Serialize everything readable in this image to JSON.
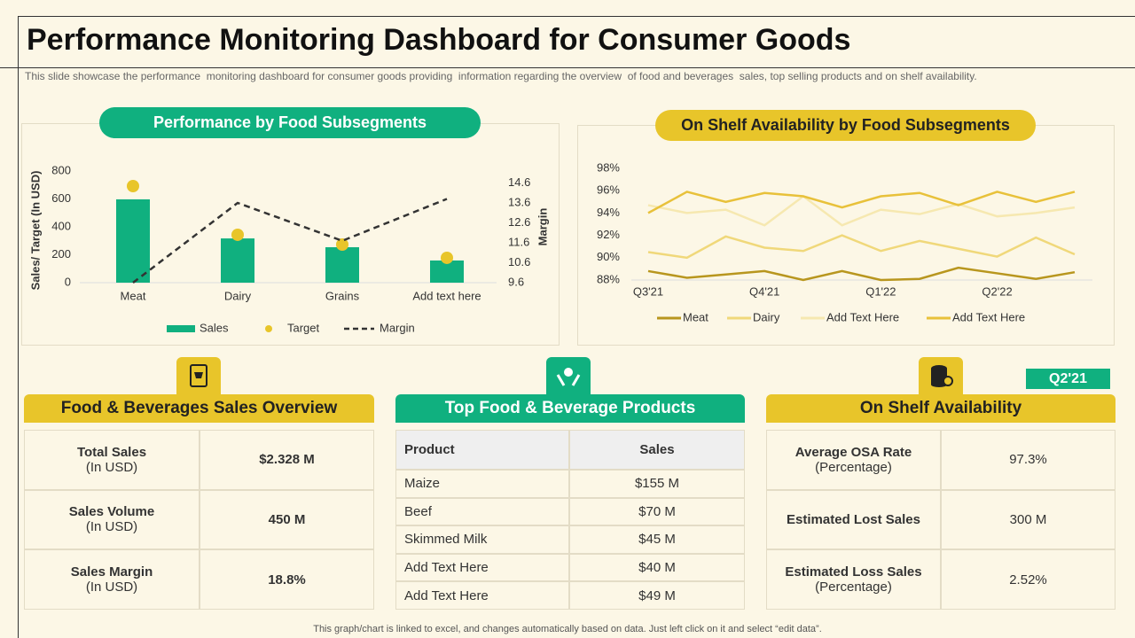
{
  "title": "Performance Monitoring Dashboard for Consumer Goods",
  "subtitle": "This slide showcase the performance  monitoring dashboard for consumer goods providing  information regarding the overview  of food and beverages  sales, top selling products and on shelf availability.",
  "footer": "This graph/chart is linked to excel, and changes automatically based on data. Just left click on it and select “edit data”.",
  "chart_data": [
    {
      "type": "bar",
      "title": "Performance by Food Subsegments",
      "y_label": "Sales/ Target (In USD)",
      "y2_label": "Margin",
      "categories": [
        "Meat",
        "Dairy",
        "Grains",
        "Add text here"
      ],
      "ylim": [
        0,
        800
      ],
      "yticks": [
        0,
        200,
        400,
        600,
        800
      ],
      "y2lim": [
        9.6,
        15.2
      ],
      "y2ticks": [
        9.6,
        10.6,
        11.6,
        12.6,
        13.6,
        14.6
      ],
      "series": [
        {
          "name": "Sales",
          "type": "bar",
          "color": "#10b07f",
          "values": [
            597,
            317,
            254,
            159
          ]
        },
        {
          "name": "Target",
          "type": "scatter",
          "color": "#e8c52a",
          "values": [
            692,
            343,
            273,
            178
          ]
        },
        {
          "name": "Margin",
          "type": "line",
          "color": "#333333",
          "axis": "y2",
          "values": [
            9.6,
            13.6,
            11.7,
            13.8
          ]
        }
      ]
    },
    {
      "type": "line",
      "title": "On Shelf Availability by Food Subsegments",
      "categories": [
        "Q3'21",
        null,
        null,
        "Q4'21",
        null,
        null,
        "Q1'22",
        null,
        null,
        "Q2'22",
        null,
        null
      ],
      "ylim": [
        88,
        98
      ],
      "yticks": [
        {
          "value": 88,
          "label": "88%"
        },
        {
          "value": 90,
          "label": "90%"
        },
        {
          "value": 92,
          "label": "92%"
        },
        {
          "value": 94,
          "label": "94%"
        },
        {
          "value": 96,
          "label": "96%"
        },
        {
          "value": 98,
          "label": "98%"
        }
      ],
      "grid": false,
      "series": [
        {
          "name": "Meat",
          "color": "#b8961e",
          "values": [
            88.8,
            88.2,
            88.5,
            88.8,
            88.0,
            88.8,
            88.0,
            88.1,
            89.1,
            88.6,
            88.1,
            88.7
          ]
        },
        {
          "name": "Dairy",
          "color": "#f0d87a",
          "values": [
            90.5,
            90.0,
            91.9,
            90.9,
            90.6,
            92.0,
            90.6,
            91.5,
            90.8,
            90.1,
            91.8,
            90.3
          ]
        },
        {
          "name": "Add Text Here",
          "color": "#f6e8b0",
          "values": [
            94.7,
            94.0,
            94.3,
            92.9,
            95.5,
            92.9,
            94.3,
            93.9,
            94.8,
            93.7,
            94.0,
            94.5
          ]
        },
        {
          "name": "Add Text Here",
          "color": "#e8c13a",
          "values": [
            94.0,
            95.9,
            95.0,
            95.8,
            95.5,
            94.5,
            95.5,
            95.8,
            94.7,
            95.9,
            95.0,
            95.9
          ]
        }
      ]
    }
  ],
  "sales_overview": {
    "title": "Food & Beverages Sales Overview",
    "rows": [
      {
        "label": "Total Sales",
        "sub": "(In USD)",
        "value": "$2.328 M"
      },
      {
        "label": "Sales Volume",
        "sub": "(In USD)",
        "value": "450 M"
      },
      {
        "label": "Sales Margin",
        "sub": "(In USD)",
        "value": "18.8%"
      }
    ]
  },
  "top_products": {
    "title": "Top Food & Beverage Products",
    "columns": [
      "Product",
      "Sales"
    ],
    "rows": [
      [
        "Maize",
        "$155 M"
      ],
      [
        "Beef",
        "$70 M"
      ],
      [
        "Skimmed Milk",
        "$45 M"
      ],
      [
        "Add Text Here",
        "$40 M"
      ],
      [
        "Add Text Here",
        "$49 M"
      ]
    ]
  },
  "osa": {
    "title": "On Shelf Availability",
    "badge": "Q2'21",
    "rows": [
      {
        "label": "Average OSA Rate",
        "sub": "(Percentage)",
        "value": "97.3%"
      },
      {
        "label": "Estimated Lost Sales",
        "value": "300 M"
      },
      {
        "label": "Estimated Loss Sales",
        "sub": "(Percentage)",
        "value": "2.52%"
      }
    ]
  }
}
